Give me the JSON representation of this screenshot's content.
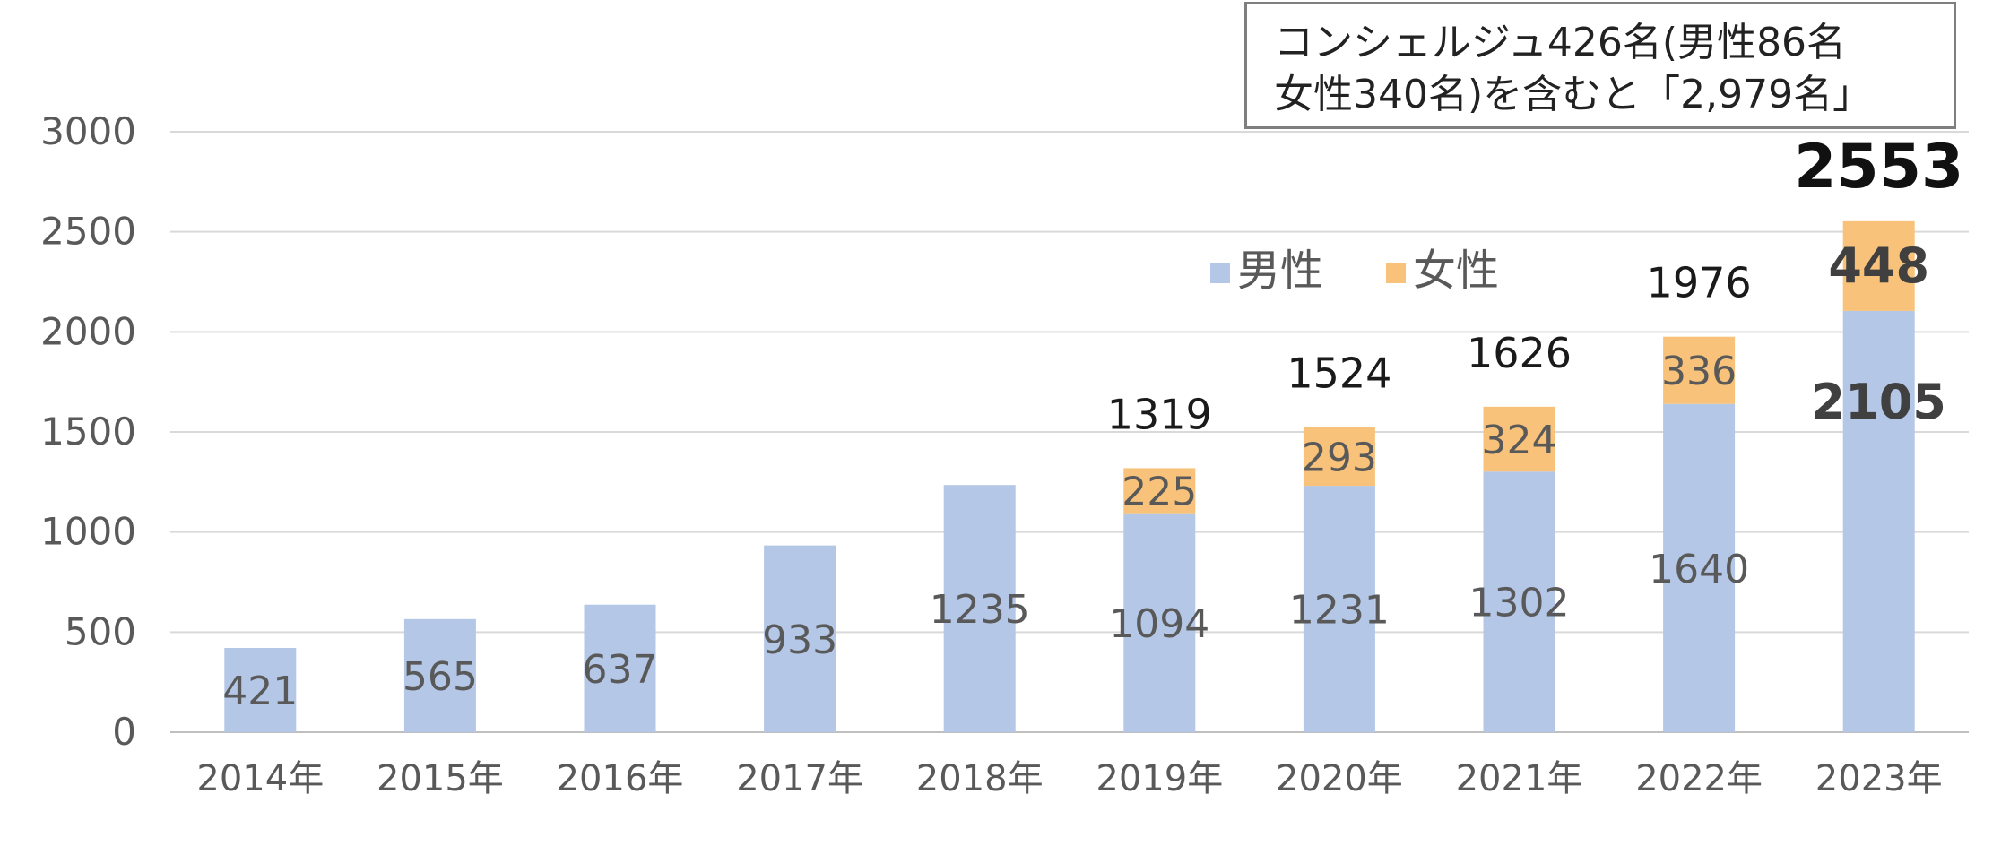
{
  "chart_data": {
    "type": "bar",
    "stacked": true,
    "categories": [
      "2014年",
      "2015年",
      "2016年",
      "2017年",
      "2018年",
      "2019年",
      "2020年",
      "2021年",
      "2022年",
      "2023年"
    ],
    "series": [
      {
        "name": "男性",
        "color": "#b4c7e7",
        "values": [
          421,
          565,
          637,
          933,
          1235,
          1094,
          1231,
          1302,
          1640,
          2105
        ]
      },
      {
        "name": "女性",
        "color": "#f8c27a",
        "values": [
          null,
          null,
          null,
          null,
          null,
          225,
          293,
          324,
          336,
          448
        ]
      }
    ],
    "totals": [
      null,
      null,
      null,
      null,
      null,
      1319,
      1524,
      1626,
      1976,
      2553
    ],
    "ylim": [
      0,
      3000
    ],
    "yticks": [
      "0",
      "500",
      "1000",
      "1500",
      "2000",
      "2500",
      "3000"
    ],
    "grid": true,
    "legend_position": "top-right",
    "xlabel": "",
    "ylabel": "",
    "title": ""
  },
  "annotation": {
    "line1": "コンシェルジュ426名(男性86名",
    "line2": "女性340名)を含むと「2,979名」"
  }
}
